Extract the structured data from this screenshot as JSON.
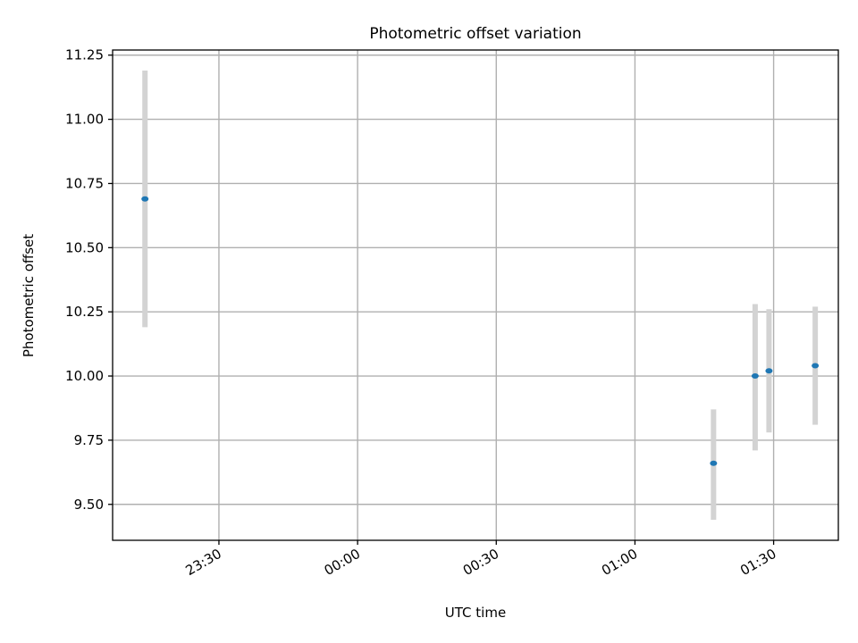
{
  "chart_data": {
    "type": "scatter",
    "title": "Photometric offset variation",
    "xlabel": "UTC time",
    "ylabel": "Photometric offset",
    "x_axis": {
      "unit": "minutes relative to 00:00 UTC",
      "range": [
        "23:07",
        "01:44"
      ],
      "ticks": [
        {
          "label": "23:30",
          "value": "23:30"
        },
        {
          "label": "00:00",
          "value": "00:00"
        },
        {
          "label": "00:30",
          "value": "00:30"
        },
        {
          "label": "01:00",
          "value": "01:00"
        },
        {
          "label": "01:30",
          "value": "01:30"
        }
      ]
    },
    "y_axis": {
      "range": [
        9.36,
        11.27
      ],
      "ticks": [
        "9.50",
        "9.75",
        "10.00",
        "10.25",
        "10.50",
        "10.75",
        "11.00",
        "11.25"
      ]
    },
    "grid": true,
    "legend": "none",
    "colors": {
      "point": "#1f77b4",
      "errorbar": "#d3d3d3",
      "grid": "#b0b0b0"
    },
    "series": [
      {
        "points": [
          {
            "time": "23:14",
            "y": 10.69,
            "y_low": 10.19,
            "y_high": 11.19
          },
          {
            "time": "01:17",
            "y": 9.66,
            "y_low": 9.44,
            "y_high": 9.87
          },
          {
            "time": "01:26",
            "y": 10.0,
            "y_low": 9.71,
            "y_high": 10.28
          },
          {
            "time": "01:29",
            "y": 10.02,
            "y_low": 9.78,
            "y_high": 10.26
          },
          {
            "time": "01:39",
            "y": 10.04,
            "y_low": 9.81,
            "y_high": 10.27
          }
        ]
      }
    ]
  }
}
